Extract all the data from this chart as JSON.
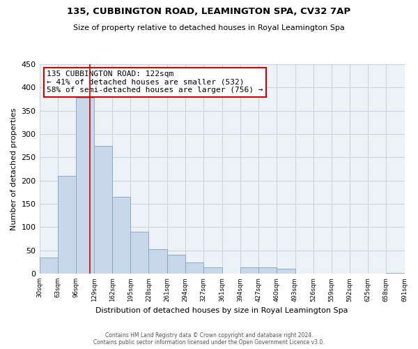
{
  "title1": "135, CUBBINGTON ROAD, LEAMINGTON SPA, CV32 7AP",
  "title2": "Size of property relative to detached houses in Royal Leamington Spa",
  "xlabel": "Distribution of detached houses by size in Royal Leamington Spa",
  "ylabel": "Number of detached properties",
  "bar_color": "#c8d8ea",
  "bar_edge_color": "#88aac8",
  "bin_edges": [
    30,
    63,
    96,
    129,
    162,
    195,
    228,
    261,
    294,
    327,
    361,
    394,
    427,
    460,
    493,
    526,
    559,
    592,
    625,
    658,
    691
  ],
  "bar_heights": [
    35,
    210,
    378,
    275,
    165,
    90,
    53,
    40,
    24,
    13,
    0,
    13,
    13,
    10,
    0,
    0,
    0,
    0,
    0,
    2
  ],
  "ylim": [
    0,
    450
  ],
  "yticks": [
    0,
    50,
    100,
    150,
    200,
    250,
    300,
    350,
    400,
    450
  ],
  "vline_x": 122,
  "vline_color": "#cc0000",
  "annotation_line1": "135 CUBBINGTON ROAD: 122sqm",
  "annotation_line2": "← 41% of detached houses are smaller (532)",
  "annotation_line3": "58% of semi-detached houses are larger (756) →",
  "annotation_box_color": "white",
  "annotation_box_edge": "#cc0000",
  "footer1": "Contains HM Land Registry data © Crown copyright and database right 2024.",
  "footer2": "Contains public sector information licensed under the Open Government Licence v3.0.",
  "tick_labels": [
    "30sqm",
    "63sqm",
    "96sqm",
    "129sqm",
    "162sqm",
    "195sqm",
    "228sqm",
    "261sqm",
    "294sqm",
    "327sqm",
    "361sqm",
    "394sqm",
    "427sqm",
    "460sqm",
    "493sqm",
    "526sqm",
    "559sqm",
    "592sqm",
    "625sqm",
    "658sqm",
    "691sqm"
  ],
  "background_color": "#edf2f7",
  "grid_color": "#c8d4e0"
}
